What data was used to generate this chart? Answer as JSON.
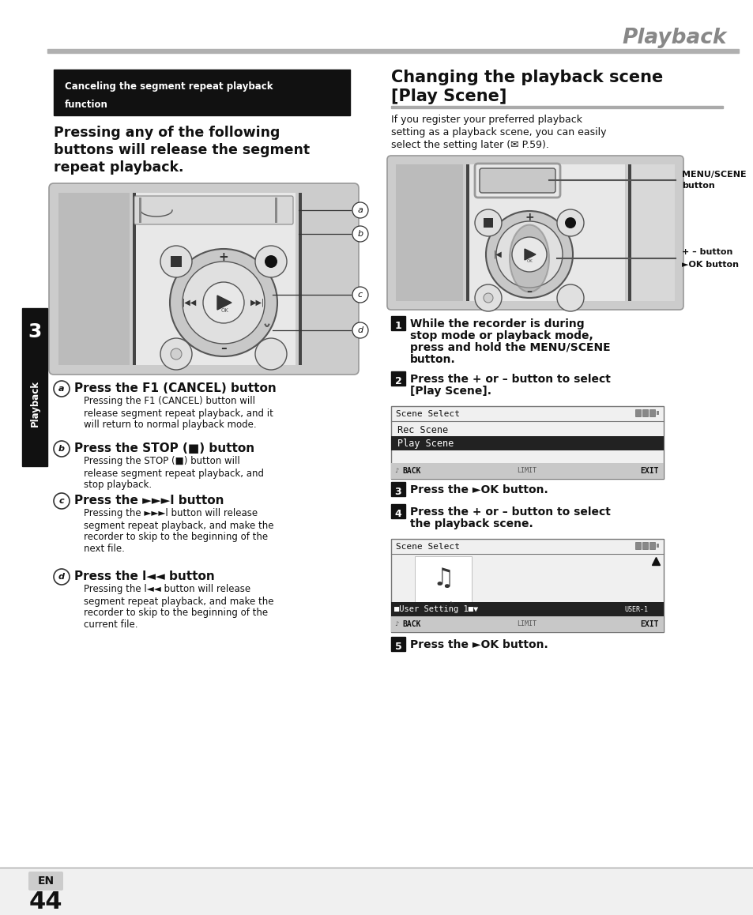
{
  "page_title": "Playback",
  "bg_color": "#ffffff",
  "header_bar_color": "#b0b0b0",
  "left_header_bg": "#111111",
  "right_title_line1": "Changing the playback scene",
  "right_title_line2": "[Play Scene]",
  "right_intro_lines": [
    "If you register your preferred playback",
    "setting as a playback scene, you can easily",
    "select the setting later (✉ P.59)."
  ],
  "left_bold_lines": [
    "Pressing any of the following",
    "buttons will release the segment",
    "repeat playback."
  ],
  "a_title": "Press the F1 (CANCEL) button",
  "a_body_lines": [
    "Pressing the F1 (CANCEL) button will",
    "release segment repeat playback, and it",
    "will return to normal playback mode."
  ],
  "b_title": "Press the STOP (■) button",
  "b_body_lines": [
    "Pressing the STOP (■) button will",
    "release segment repeat playback, and",
    "stop playback."
  ],
  "c_title": "Press the ►►►l button",
  "c_body_lines": [
    "Pressing the ►►►l button will release",
    "segment repeat playback, and make the",
    "recorder to skip to the beginning of the",
    "next file."
  ],
  "d_title": "Press the l◄◄ button",
  "d_body_lines": [
    "Pressing the l◄◄ button will release",
    "segment repeat playback, and make the",
    "recorder to skip to the beginning of the",
    "current file."
  ],
  "step1_lines": [
    "While the recorder is during",
    "stop mode or playback mode,",
    "press and hold the MENU/SCENE",
    "button."
  ],
  "step2_lines": [
    "Press the + or – button to select",
    "[Play Scene]."
  ],
  "step3_lines": [
    "Press the ►OK button."
  ],
  "step4_lines": [
    "Press the + or – button to select",
    "the playback scene."
  ],
  "step5_lines": [
    "Press the ►OK button."
  ],
  "page_number": "44",
  "en_label": "EN",
  "chapter_num": "3",
  "chapter_label": "Playback"
}
